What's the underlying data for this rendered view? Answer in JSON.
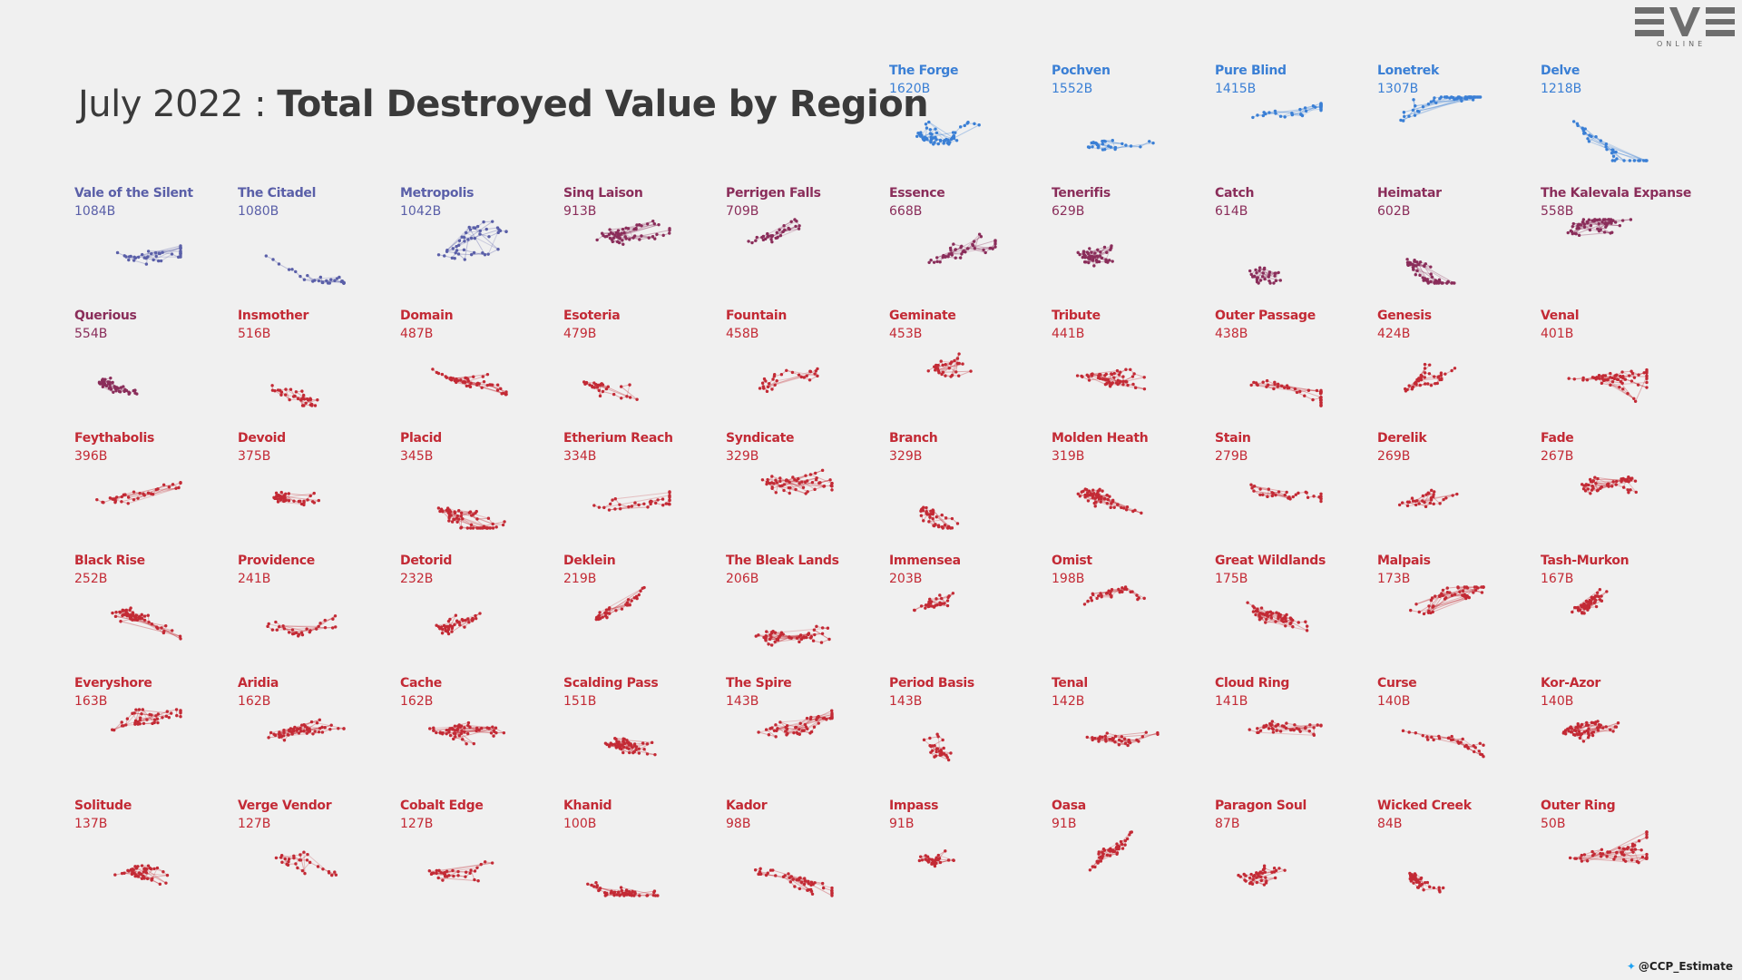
{
  "title": {
    "light": "July 2022 : ",
    "bold": "Total Destroyed Value by Region"
  },
  "logo": {
    "main": "EVE",
    "sub": "ONLINE"
  },
  "credit": "@CCP_Estimate",
  "colors": {
    "top5": "#3a7fd5",
    "tier2": "#5a5fa8",
    "mid": "#8a2d5a",
    "low": "#c32a35",
    "background": "#f0f0f0"
  },
  "chart_data": {
    "type": "small-multiples",
    "title": "July 2022 : Total Destroyed Value by Region",
    "unit": "B",
    "regions": [
      {
        "name": "The Forge",
        "value": 1620,
        "label": "1620B"
      },
      {
        "name": "Pochven",
        "value": 1552,
        "label": "1552B"
      },
      {
        "name": "Pure Blind",
        "value": 1415,
        "label": "1415B"
      },
      {
        "name": "Lonetrek",
        "value": 1307,
        "label": "1307B"
      },
      {
        "name": "Delve",
        "value": 1218,
        "label": "1218B"
      },
      {
        "name": "Vale of the Silent",
        "value": 1084,
        "label": "1084B"
      },
      {
        "name": "The Citadel",
        "value": 1080,
        "label": "1080B"
      },
      {
        "name": "Metropolis",
        "value": 1042,
        "label": "1042B"
      },
      {
        "name": "Sinq Laison",
        "value": 913,
        "label": "913B"
      },
      {
        "name": "Perrigen Falls",
        "value": 709,
        "label": "709B"
      },
      {
        "name": "Essence",
        "value": 668,
        "label": "668B"
      },
      {
        "name": "Tenerifis",
        "value": 629,
        "label": "629B"
      },
      {
        "name": "Catch",
        "value": 614,
        "label": "614B"
      },
      {
        "name": "Heimatar",
        "value": 602,
        "label": "602B"
      },
      {
        "name": "The Kalevala Expanse",
        "value": 558,
        "label": "558B"
      },
      {
        "name": "Querious",
        "value": 554,
        "label": "554B"
      },
      {
        "name": "Insmother",
        "value": 516,
        "label": "516B"
      },
      {
        "name": "Domain",
        "value": 487,
        "label": "487B"
      },
      {
        "name": "Esoteria",
        "value": 479,
        "label": "479B"
      },
      {
        "name": "Fountain",
        "value": 458,
        "label": "458B"
      },
      {
        "name": "Geminate",
        "value": 453,
        "label": "453B"
      },
      {
        "name": "Tribute",
        "value": 441,
        "label": "441B"
      },
      {
        "name": "Outer Passage",
        "value": 438,
        "label": "438B"
      },
      {
        "name": "Genesis",
        "value": 424,
        "label": "424B"
      },
      {
        "name": "Venal",
        "value": 401,
        "label": "401B"
      },
      {
        "name": "Feythabolis",
        "value": 396,
        "label": "396B"
      },
      {
        "name": "Devoid",
        "value": 375,
        "label": "375B"
      },
      {
        "name": "Placid",
        "value": 345,
        "label": "345B"
      },
      {
        "name": "Etherium Reach",
        "value": 334,
        "label": "334B"
      },
      {
        "name": "Syndicate",
        "value": 329,
        "label": "329B"
      },
      {
        "name": "Branch",
        "value": 329,
        "label": "329B"
      },
      {
        "name": "Molden Heath",
        "value": 319,
        "label": "319B"
      },
      {
        "name": "Stain",
        "value": 279,
        "label": "279B"
      },
      {
        "name": "Derelik",
        "value": 269,
        "label": "269B"
      },
      {
        "name": "Fade",
        "value": 267,
        "label": "267B"
      },
      {
        "name": "Black Rise",
        "value": 252,
        "label": "252B"
      },
      {
        "name": "Providence",
        "value": 241,
        "label": "241B"
      },
      {
        "name": "Detorid",
        "value": 232,
        "label": "232B"
      },
      {
        "name": "Deklein",
        "value": 219,
        "label": "219B"
      },
      {
        "name": "The Bleak Lands",
        "value": 206,
        "label": "206B"
      },
      {
        "name": "Immensea",
        "value": 203,
        "label": "203B"
      },
      {
        "name": "Omist",
        "value": 198,
        "label": "198B"
      },
      {
        "name": "Great Wildlands",
        "value": 175,
        "label": "175B"
      },
      {
        "name": "Malpais",
        "value": 173,
        "label": "173B"
      },
      {
        "name": "Tash-Murkon",
        "value": 167,
        "label": "167B"
      },
      {
        "name": "Everyshore",
        "value": 163,
        "label": "163B"
      },
      {
        "name": "Aridia",
        "value": 162,
        "label": "162B"
      },
      {
        "name": "Cache",
        "value": 162,
        "label": "162B"
      },
      {
        "name": "Scalding Pass",
        "value": 151,
        "label": "151B"
      },
      {
        "name": "The Spire",
        "value": 143,
        "label": "143B"
      },
      {
        "name": "Period Basis",
        "value": 143,
        "label": "143B"
      },
      {
        "name": "Tenal",
        "value": 142,
        "label": "142B"
      },
      {
        "name": "Cloud Ring",
        "value": 141,
        "label": "141B"
      },
      {
        "name": "Curse",
        "value": 140,
        "label": "140B"
      },
      {
        "name": "Kor-Azor",
        "value": 140,
        "label": "140B"
      },
      {
        "name": "Solitude",
        "value": 137,
        "label": "137B"
      },
      {
        "name": "Verge Vendor",
        "value": 127,
        "label": "127B"
      },
      {
        "name": "Cobalt Edge",
        "value": 127,
        "label": "127B"
      },
      {
        "name": "Khanid",
        "value": 100,
        "label": "100B"
      },
      {
        "name": "Kador",
        "value": 98,
        "label": "98B"
      },
      {
        "name": "Impass",
        "value": 91,
        "label": "91B"
      },
      {
        "name": "Oasa",
        "value": 91,
        "label": "91B"
      },
      {
        "name": "Paragon Soul",
        "value": 87,
        "label": "87B"
      },
      {
        "name": "Wicked Creek",
        "value": 84,
        "label": "84B"
      },
      {
        "name": "Outer Ring",
        "value": 50,
        "label": "50B"
      }
    ]
  }
}
